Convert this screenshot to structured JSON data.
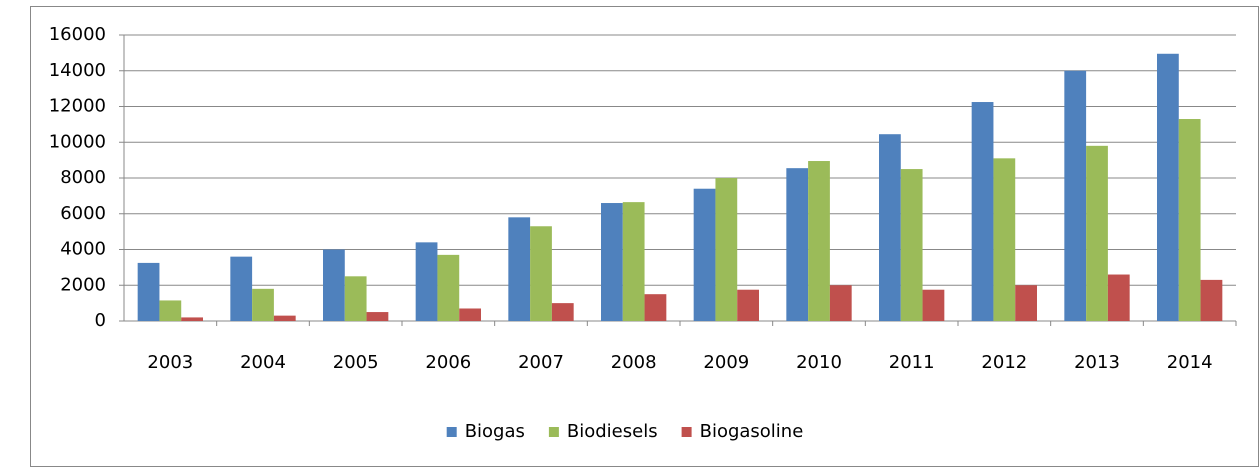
{
  "chart_data": {
    "type": "bar",
    "categories": [
      "2003",
      "2004",
      "2005",
      "2006",
      "2007",
      "2008",
      "2009",
      "2010",
      "2011",
      "2012",
      "2013",
      "2014"
    ],
    "series": [
      {
        "name": "Biogas",
        "color": "#4f81bd",
        "values": [
          3250,
          3600,
          4000,
          4400,
          5800,
          6600,
          7400,
          8550,
          10450,
          12250,
          14000,
          14950
        ]
      },
      {
        "name": "Biodiesels",
        "color": "#9bbb59",
        "values": [
          1150,
          1800,
          2500,
          3700,
          5300,
          6650,
          8000,
          8950,
          8500,
          9100,
          9800,
          11300
        ]
      },
      {
        "name": "Biogasoline",
        "color": "#c0504d",
        "values": [
          200,
          300,
          500,
          700,
          1000,
          1500,
          1750,
          2000,
          1750,
          2000,
          2600,
          2300
        ]
      }
    ],
    "ylim": [
      0,
      16000
    ],
    "yticks": [
      0,
      2000,
      4000,
      6000,
      8000,
      10000,
      12000,
      14000,
      16000
    ],
    "grid": true,
    "legend": "bottom"
  }
}
